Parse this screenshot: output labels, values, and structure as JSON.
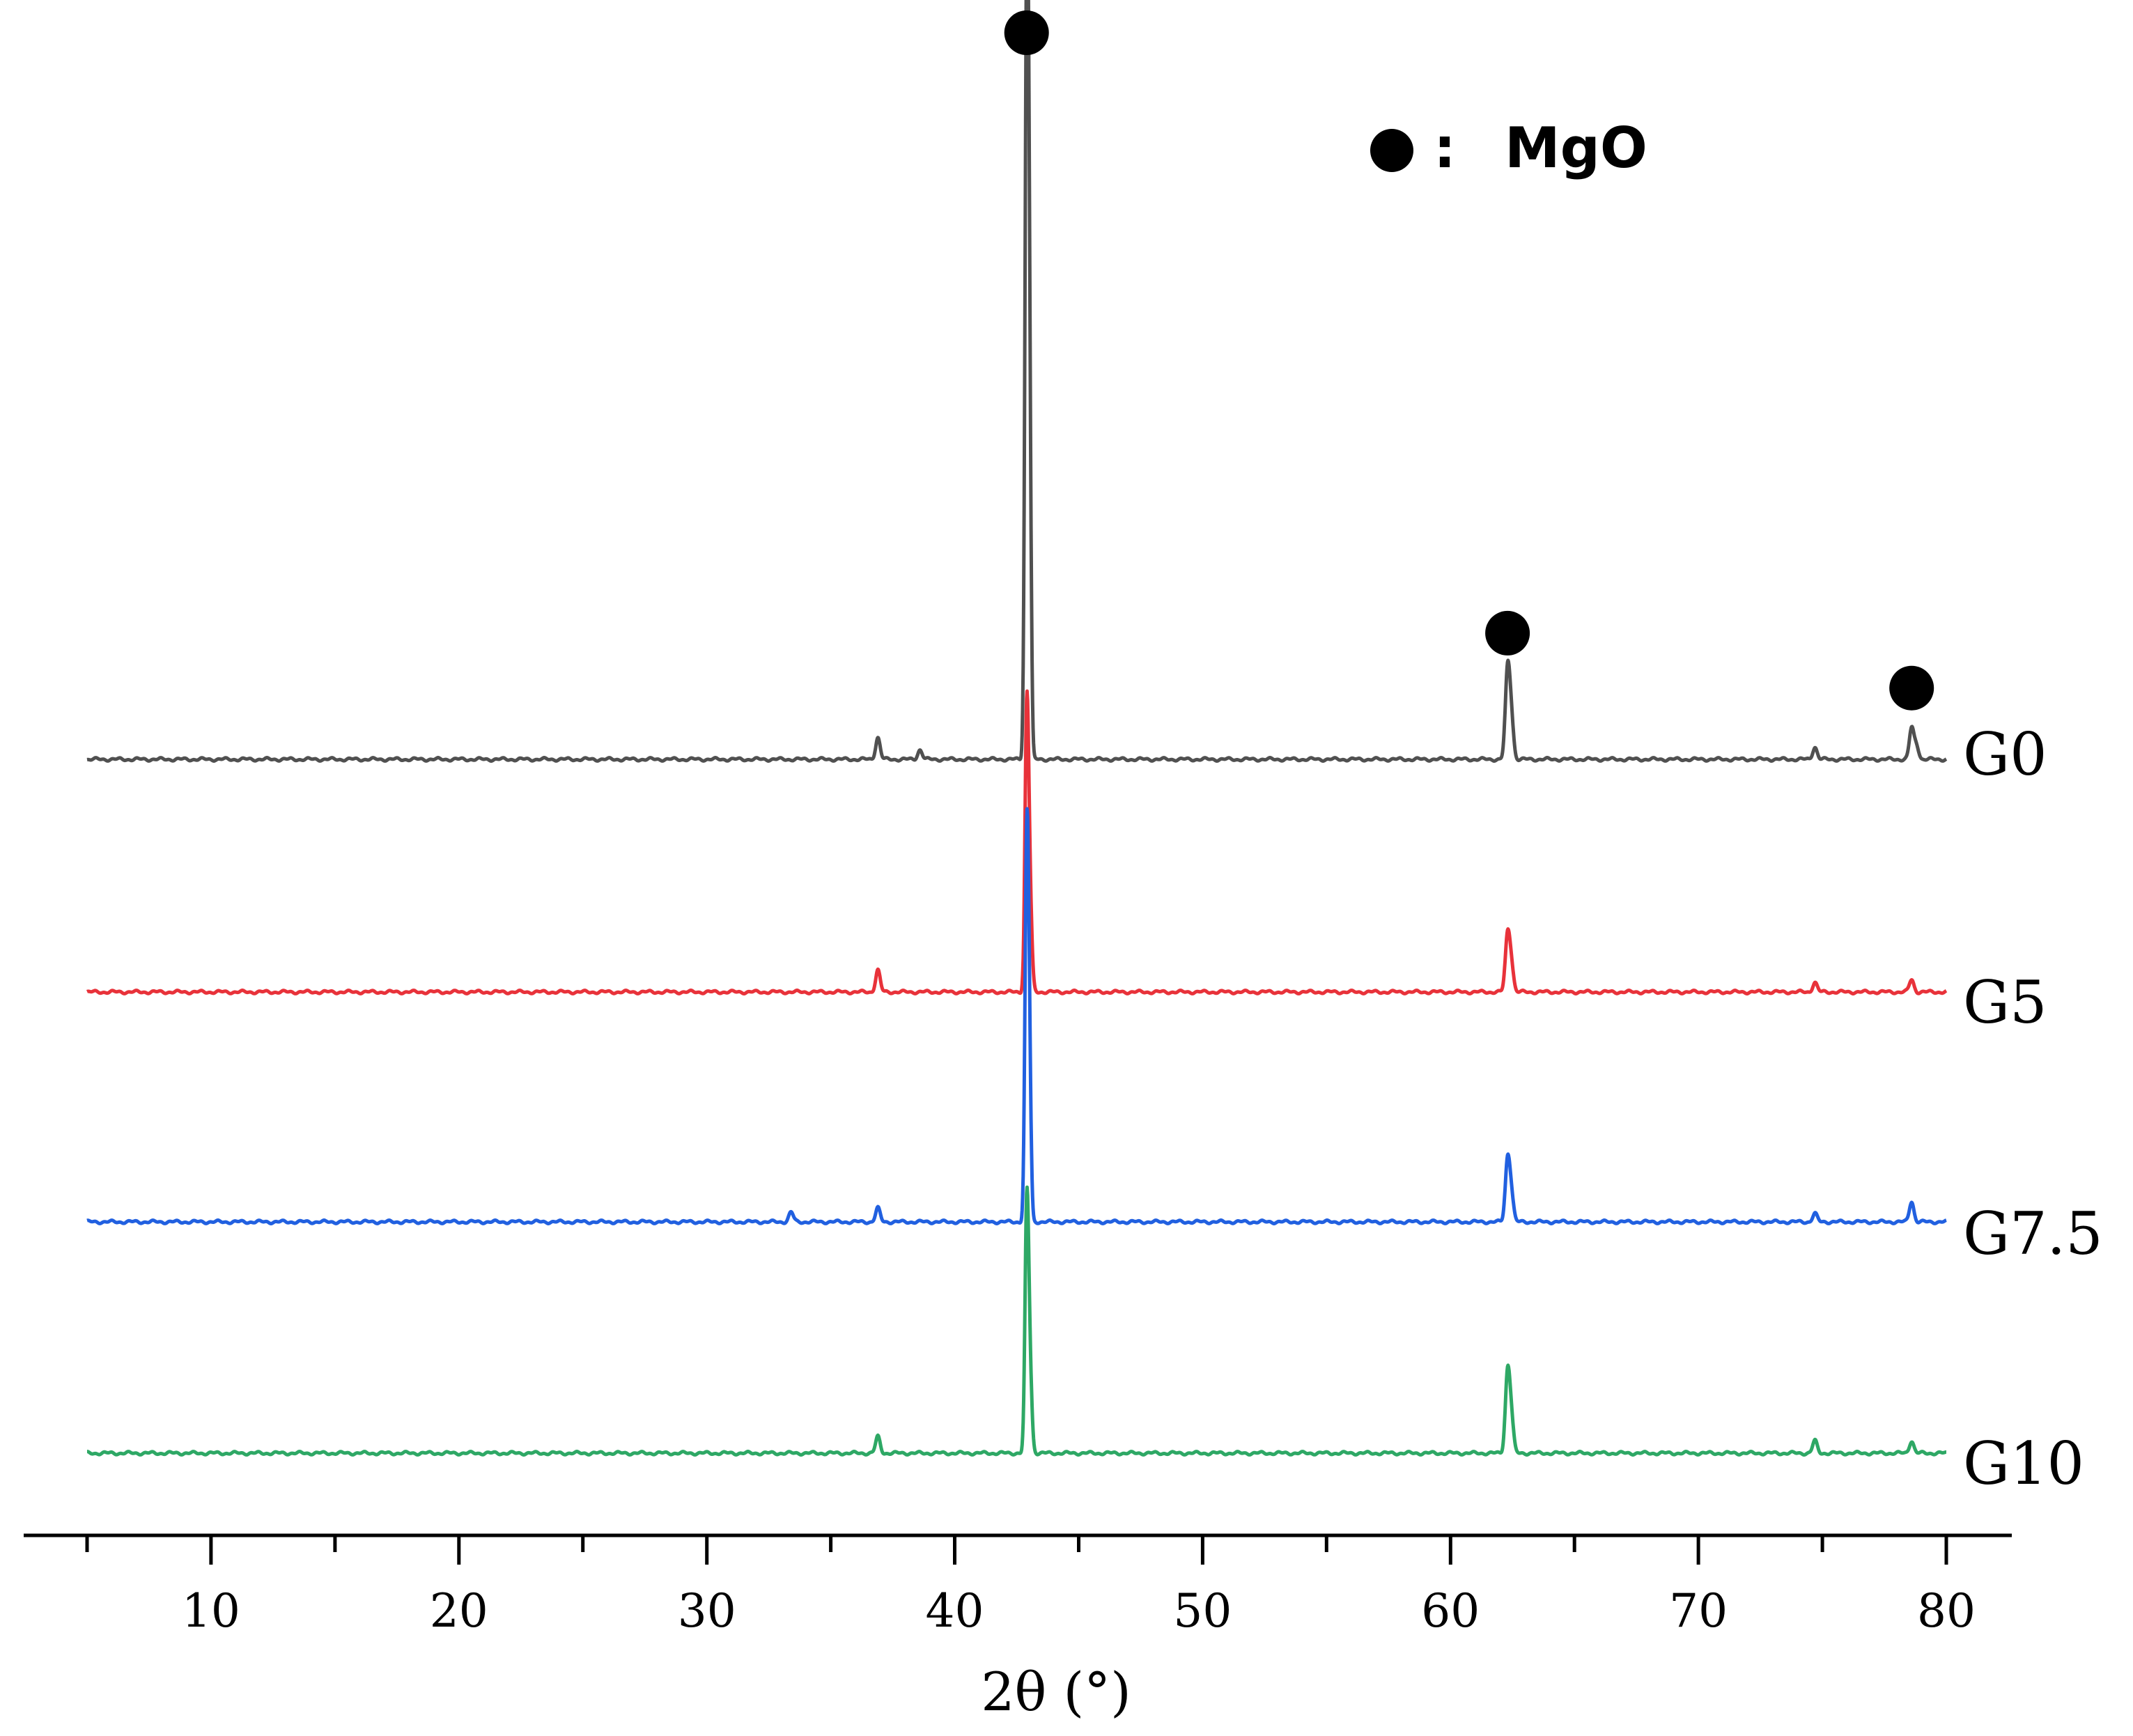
{
  "chart_data": {
    "type": "line",
    "title": "",
    "xlabel": "2θ (°)",
    "ylabel": "",
    "xlim": [
      4,
      84
    ],
    "x_ticks": [
      10,
      20,
      30,
      40,
      50,
      60,
      70,
      80
    ],
    "grid": false,
    "legend": {
      "marker": "●",
      "separator": ":",
      "text": "MgO",
      "placement": "top-right"
    },
    "peak_markers": [
      {
        "series": "G0",
        "x": 42.9
      },
      {
        "series": "G0",
        "x": 62.3
      },
      {
        "series": "G0",
        "x": 78.6
      }
    ],
    "series": [
      {
        "name": "G0",
        "label": "G0",
        "color": "#505050",
        "baseline": 0,
        "peaks": [
          {
            "x": 36.9,
            "h": 3.2
          },
          {
            "x": 38.6,
            "h": 1.4
          },
          {
            "x": 42.9,
            "h": 100
          },
          {
            "x": 43.0,
            "h": 58
          },
          {
            "x": 62.3,
            "h": 12.5
          },
          {
            "x": 62.45,
            "h": 6
          },
          {
            "x": 74.7,
            "h": 1.8
          },
          {
            "x": 78.6,
            "h": 4.5
          },
          {
            "x": 78.8,
            "h": 2
          }
        ]
      },
      {
        "name": "G5",
        "label": "G5",
        "color": "#e8323a",
        "baseline": 0,
        "peaks": [
          {
            "x": 36.9,
            "h": 3.2
          },
          {
            "x": 42.9,
            "h": 33
          },
          {
            "x": 43.0,
            "h": 18
          },
          {
            "x": 62.3,
            "h": 8
          },
          {
            "x": 62.45,
            "h": 4
          },
          {
            "x": 74.7,
            "h": 1.4
          },
          {
            "x": 78.6,
            "h": 1.8
          }
        ]
      },
      {
        "name": "G7.5",
        "label": "G7.5",
        "color": "#2160e0",
        "baseline": 0,
        "peaks": [
          {
            "x": 33.4,
            "h": 1.4
          },
          {
            "x": 36.9,
            "h": 2.0
          },
          {
            "x": 42.9,
            "h": 49
          },
          {
            "x": 43.0,
            "h": 25
          },
          {
            "x": 62.3,
            "h": 8.8
          },
          {
            "x": 62.45,
            "h": 4
          },
          {
            "x": 74.7,
            "h": 1.2
          },
          {
            "x": 78.6,
            "h": 3.0
          }
        ]
      },
      {
        "name": "G10",
        "label": "G10",
        "color": "#2ea865",
        "baseline": 0,
        "peaks": [
          {
            "x": 36.9,
            "h": 2.4
          },
          {
            "x": 42.9,
            "h": 29
          },
          {
            "x": 43.0,
            "h": 16
          },
          {
            "x": 62.3,
            "h": 11.4
          },
          {
            "x": 62.45,
            "h": 5
          },
          {
            "x": 74.7,
            "h": 1.8
          },
          {
            "x": 78.6,
            "h": 1.8
          }
        ]
      }
    ]
  }
}
